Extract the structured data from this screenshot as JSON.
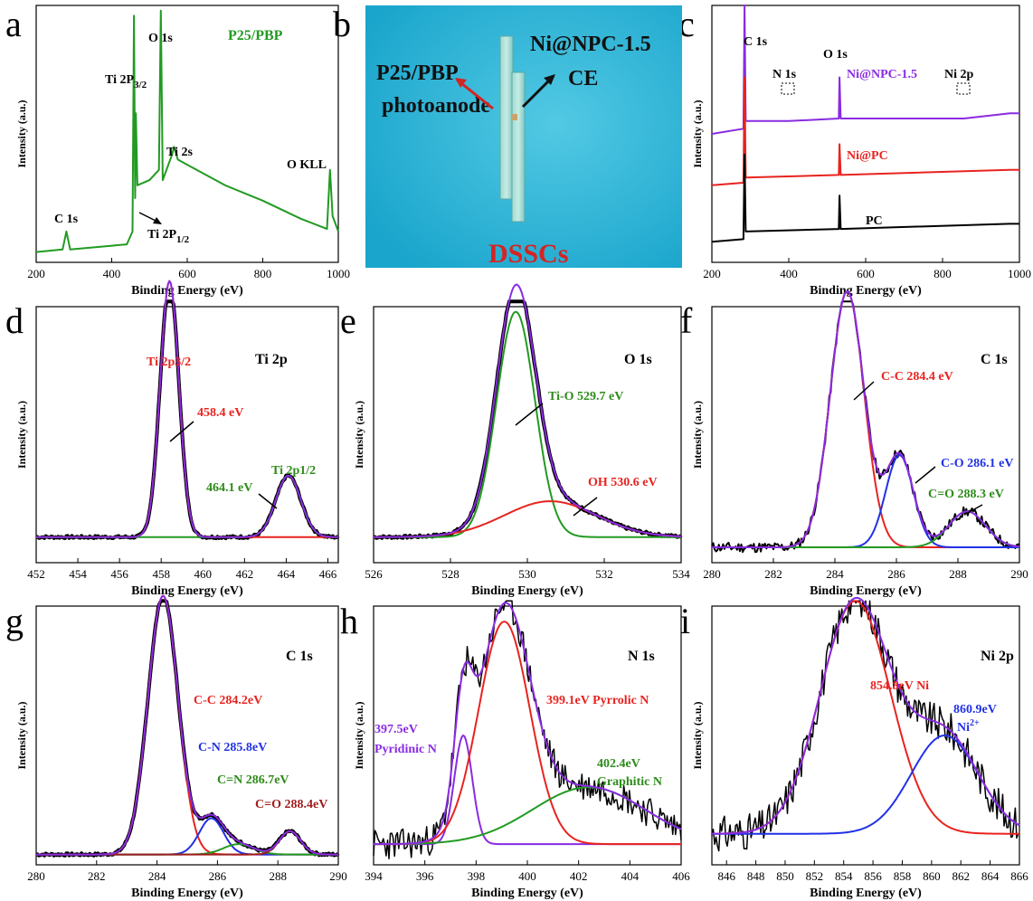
{
  "colors": {
    "green": "#229a22",
    "red": "#e8231f",
    "blue": "#2131e6",
    "purple": "#8a2be2",
    "black": "#000000",
    "darkred": "#a01d1d",
    "olive": "#2e8b1a",
    "photo_bg": "#2bb6d8"
  },
  "chart_data": [
    {
      "id": "a",
      "type": "line",
      "title": "P25/PBP",
      "xlabel": "Binding Energy (eV)",
      "ylabel": "Intensity (a.u.)",
      "xlim": [
        200,
        1000
      ],
      "xticks": [
        "200",
        "400",
        "600",
        "800",
        "1000"
      ],
      "series": [
        {
          "values": [
            [
              200,
              0.04
            ],
            [
              270,
              0.05
            ],
            [
              280,
              0.12
            ],
            [
              290,
              0.05
            ],
            [
              440,
              0.07
            ],
            [
              455,
              0.12
            ],
            [
              459,
              0.96
            ],
            [
              462,
              0.25
            ],
            [
              464,
              0.58
            ],
            [
              468,
              0.3
            ],
            [
              500,
              0.32
            ],
            [
              525,
              0.36
            ],
            [
              530,
              0.98
            ],
            [
              535,
              0.32
            ],
            [
              560,
              0.42
            ],
            [
              565,
              0.45
            ],
            [
              575,
              0.4
            ],
            [
              600,
              0.38
            ],
            [
              700,
              0.3
            ],
            [
              800,
              0.24
            ],
            [
              900,
              0.17
            ],
            [
              970,
              0.13
            ],
            [
              978,
              0.36
            ],
            [
              985,
              0.18
            ],
            [
              1000,
              0.12
            ]
          ]
        }
      ],
      "annotations": [
        "C 1s",
        "Ti 2P3/2",
        "O 1s",
        "Ti 2s",
        "O KLL",
        "Ti 2P1/2"
      ]
    },
    {
      "id": "c",
      "type": "line",
      "xlabel": "Binding Energy (eV)",
      "ylabel": "Intensity (a.u.)",
      "xlim": [
        200,
        1000
      ],
      "xticks": [
        "200",
        "400",
        "600",
        "800",
        "1000"
      ],
      "series": [
        {
          "name": "Ni@NPC-1.5",
          "values": [
            [
              200,
              0.5
            ],
            [
              282,
              0.52
            ],
            [
              285,
              1.0
            ],
            [
              288,
              0.55
            ],
            [
              400,
              0.55
            ],
            [
              530,
              0.56
            ],
            [
              532,
              0.72
            ],
            [
              535,
              0.56
            ],
            [
              855,
              0.56
            ],
            [
              975,
              0.58
            ],
            [
              1000,
              0.58
            ]
          ]
        },
        {
          "name": "Ni@PC",
          "values": [
            [
              200,
              0.3
            ],
            [
              282,
              0.31
            ],
            [
              285,
              0.72
            ],
            [
              288,
              0.33
            ],
            [
              530,
              0.34
            ],
            [
              532,
              0.46
            ],
            [
              535,
              0.34
            ],
            [
              975,
              0.36
            ],
            [
              1000,
              0.36
            ]
          ]
        },
        {
          "name": "PC",
          "values": [
            [
              200,
              0.08
            ],
            [
              282,
              0.09
            ],
            [
              285,
              0.42
            ],
            [
              288,
              0.12
            ],
            [
              530,
              0.13
            ],
            [
              532,
              0.26
            ],
            [
              535,
              0.13
            ],
            [
              975,
              0.15
            ],
            [
              1000,
              0.15
            ]
          ]
        }
      ],
      "annotations": [
        "C 1s",
        "O 1s",
        "N 1s",
        "Ni 2p"
      ]
    },
    {
      "id": "d",
      "type": "line",
      "title": "Ti 2p",
      "xlabel": "Binding Energy (eV)",
      "ylabel": "Intensity (a.u.)",
      "xlim": [
        452,
        466.5
      ],
      "xticks": [
        "452",
        "454",
        "456",
        "458",
        "460",
        "462",
        "464",
        "466"
      ],
      "series": [
        {
          "name": "Ti 2p3/2",
          "values": [
            [
              458.4,
              1.0
            ]
          ]
        },
        {
          "name": "Ti 2p1/2",
          "values": [
            [
              464.1,
              0.24
            ]
          ]
        }
      ],
      "annotations": [
        "Ti 2p3/2",
        "458.4 eV",
        "464.1 eV",
        "Ti 2p1/2"
      ]
    },
    {
      "id": "e",
      "type": "line",
      "title": "O 1s",
      "xlabel": "Binding Energy (eV)",
      "ylabel": "Intensity (a.u.)",
      "xlim": [
        526,
        534
      ],
      "xticks": [
        "526",
        "528",
        "530",
        "532",
        "534"
      ],
      "series": [
        {
          "name": "Ti-O",
          "values": [
            [
              529.7,
              0.88
            ]
          ]
        },
        {
          "name": "OH",
          "values": [
            [
              530.6,
              0.14
            ]
          ]
        }
      ],
      "annotations": [
        "Ti-O 529.7 eV",
        "OH 530.6 eV"
      ]
    },
    {
      "id": "f",
      "type": "line",
      "title": "C 1s",
      "xlabel": "Binding Energy (eV)",
      "ylabel": "Intensity (a.u.)",
      "xlim": [
        280,
        290
      ],
      "xticks": [
        "280",
        "282",
        "284",
        "286",
        "288",
        "290"
      ],
      "series": [
        {
          "name": "C-C",
          "values": [
            [
              284.4,
              1.0
            ]
          ]
        },
        {
          "name": "C-O",
          "values": [
            [
              286.1,
              0.36
            ]
          ]
        },
        {
          "name": "C=O",
          "values": [
            [
              288.3,
              0.14
            ]
          ]
        }
      ],
      "annotations": [
        "C-C 284.4 eV",
        "C-O 286.1 eV",
        "C=O 288.3 eV"
      ]
    },
    {
      "id": "g",
      "type": "line",
      "title": "C 1s",
      "xlabel": "Binding Energy (eV)",
      "ylabel": "Intensity (a.u.)",
      "xlim": [
        280,
        290
      ],
      "xticks": [
        "280",
        "282",
        "284",
        "286",
        "288",
        "290"
      ],
      "series": [
        {
          "name": "C-C",
          "values": [
            [
              284.2,
              1.0
            ]
          ]
        },
        {
          "name": "C-N",
          "values": [
            [
              285.8,
              0.14
            ]
          ]
        },
        {
          "name": "C=N",
          "values": [
            [
              286.7,
              0.04
            ]
          ]
        },
        {
          "name": "C=O",
          "values": [
            [
              288.4,
              0.09
            ]
          ]
        }
      ],
      "annotations": [
        "C-C 284.2eV",
        "C-N 285.8eV",
        "C=N 286.7eV",
        "C=O 288.4eV"
      ]
    },
    {
      "id": "h",
      "type": "line",
      "title": "N 1s",
      "xlabel": "Binding Energy (eV)",
      "ylabel": "Intensity (a.u.)",
      "xlim": [
        394,
        406
      ],
      "xticks": [
        "394",
        "396",
        "398",
        "400",
        "402",
        "404",
        "406"
      ],
      "series": [
        {
          "name": "Pyridinic N",
          "values": [
            [
              397.5,
              0.42
            ]
          ]
        },
        {
          "name": "Pyrrolic N",
          "values": [
            [
              399.1,
              0.86
            ]
          ]
        },
        {
          "name": "Graphitic N",
          "values": [
            [
              402.4,
              0.22
            ]
          ]
        }
      ],
      "annotations": [
        "397.5eV",
        "Pyridinic N",
        "399.1eV Pyrrolic N",
        "402.4eV",
        "Graphitic N"
      ]
    },
    {
      "id": "i",
      "type": "line",
      "title": "Ni 2p",
      "xlabel": "Binding Energy (eV)",
      "ylabel": "Intensity (a.u.)",
      "xlim": [
        845,
        866
      ],
      "xticks": [
        "846",
        "848",
        "850",
        "852",
        "854",
        "856",
        "858",
        "860",
        "862",
        "864",
        "866"
      ],
      "series": [
        {
          "name": "Ni",
          "values": [
            [
              854.8,
              0.9
            ]
          ]
        },
        {
          "name": "Ni2+",
          "values": [
            [
              860.9,
              0.38
            ]
          ]
        }
      ],
      "annotations": [
        "854.8eV Ni",
        "860.9eV",
        "Ni2+"
      ]
    }
  ],
  "panels": {
    "a": {
      "label": "a",
      "title": "P25/PBP",
      "ann": {
        "c1s": "C 1s",
        "ti2p32": "Ti 2P",
        "ti2p32_sub": "3/2",
        "o1s": "O 1s",
        "ti2s": "Ti 2s",
        "okll": "O KLL",
        "ti2p12": "Ti 2P",
        "ti2p12_sub": "1/2"
      }
    },
    "b": {
      "label": "b",
      "left1": "P25/PBP",
      "left2": "photoanode",
      "right1": "Ni@NPC-1.5",
      "right2": "CE",
      "bottom": "DSSCs"
    },
    "c": {
      "label": "c",
      "ann": {
        "c1s": "C 1s",
        "o1s": "O 1s",
        "n1s": "N 1s",
        "ni2p": "Ni 2p",
        "s1": "Ni@NPC-1.5",
        "s2": "Ni@PC",
        "s3": "PC"
      }
    },
    "d": {
      "label": "d",
      "title": "Ti 2p",
      "ann": {
        "p32": "Ti 2p3/2",
        "e1": "458.4 eV",
        "e2": "464.1 eV",
        "p12": "Ti 2p1/2"
      }
    },
    "e": {
      "label": "e",
      "title": "O 1s",
      "ann": {
        "tio": "Ti-O 529.7 eV",
        "oh": "OH 530.6 eV"
      }
    },
    "f": {
      "label": "f",
      "title": "C 1s",
      "ann": {
        "cc": "C-C 284.4 eV",
        "co": "C-O 286.1 eV",
        "ceo": "C=O 288.3 eV"
      }
    },
    "g": {
      "label": "g",
      "title": "C 1s",
      "ann": {
        "cc": "C-C 284.2eV",
        "cn": "C-N 285.8eV",
        "cen": "C=N 286.7eV",
        "ceo": "C=O 288.4eV"
      }
    },
    "h": {
      "label": "h",
      "title": "N 1s",
      "ann": {
        "pyr1": "397.5eV",
        "pyr2": "Pyridinic N",
        "pyrr": "399.1eV Pyrrolic N",
        "gr1": "402.4eV",
        "gr2": "Graphitic N"
      }
    },
    "i": {
      "label": "i",
      "title": "Ni 2p",
      "ann": {
        "ni": "854.8eV Ni",
        "ni2a": "860.9eV",
        "ni2b": "Ni",
        "ni2b_sup": "2+"
      }
    }
  },
  "axis": {
    "xlabel": "Binding Energy (eV)",
    "ylabel": "Intensity (a.u.)"
  }
}
